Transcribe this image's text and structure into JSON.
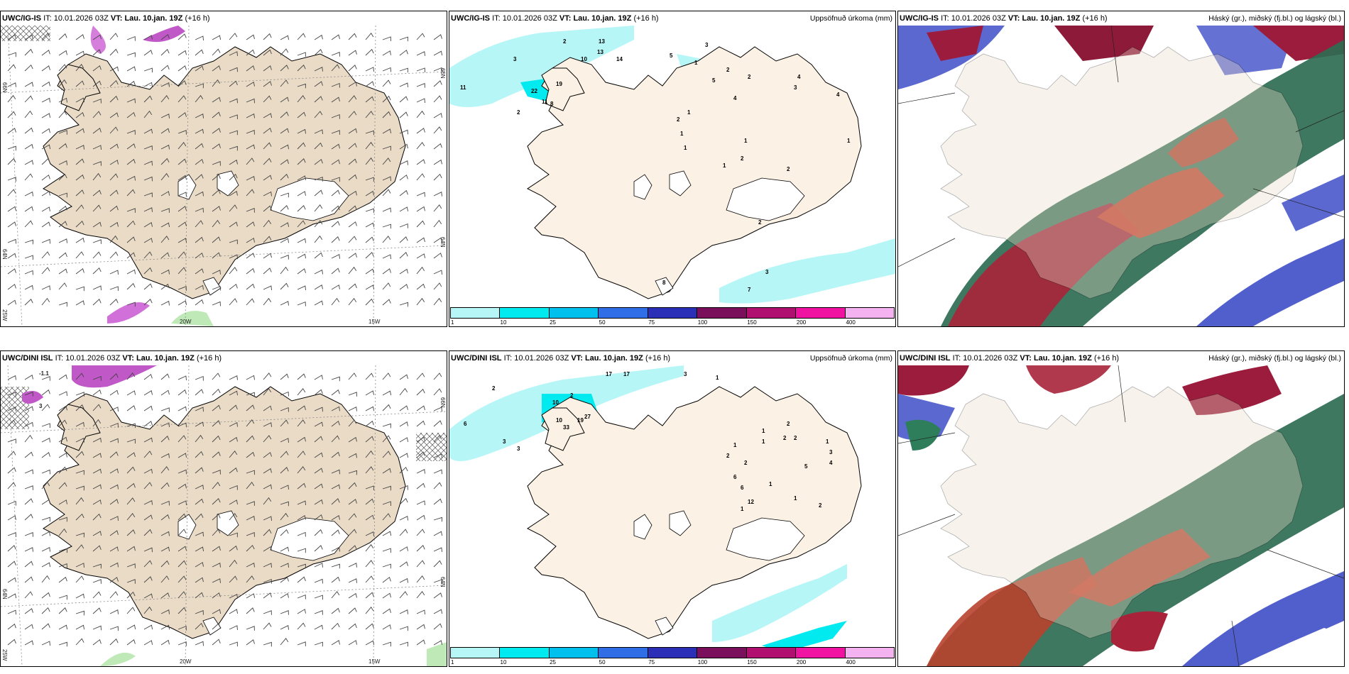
{
  "panels": {
    "p1": {
      "model": "UWC/IG-IS",
      "it_label": "IT:",
      "it": "10.01.2026 03Z",
      "vt_label": "VT:",
      "vt": "Lau. 10.jan. 19Z",
      "lead": "(+16 h)",
      "title": ""
    },
    "p2": {
      "model": "UWC/IG-IS",
      "it_label": "IT:",
      "it": "10.01.2026 03Z",
      "vt_label": "VT:",
      "vt": "Lau. 10.jan. 19Z",
      "lead": "(+16 h)",
      "title": "Uppsöfnuð úrkoma (mm)"
    },
    "p3": {
      "model": "UWC/IG-IS",
      "it_label": "IT:",
      "it": "10.01.2026 03Z",
      "vt_label": "VT:",
      "vt": "Lau. 10.jan. 19Z",
      "lead": "(+16 h)",
      "title": "Háský (gr.), miðský (fj.bl.) og lágský (bl.)"
    },
    "p4": {
      "model": "UWC/DINI ISL",
      "it_label": "IT:",
      "it": "10.01.2026 03Z",
      "vt_label": "VT:",
      "vt": "Lau. 10.jan. 19Z",
      "lead": "(+16 h)",
      "title": ""
    },
    "p5": {
      "model": "UWC/DINI ISL",
      "it_label": "IT:",
      "it": "10.01.2026 03Z",
      "vt_label": "VT:",
      "vt": "Lau. 10.jan. 19Z",
      "lead": "(+16 h)",
      "title": "Uppsöfnuð úrkoma (mm)"
    },
    "p6": {
      "model": "UWC/DINI ISL",
      "it_label": "IT:",
      "it": "10.01.2026 03Z",
      "vt_label": "VT:",
      "vt": "Lau. 10.jan. 19Z",
      "lead": "(+16 h)",
      "title": "Háský (gr.), miðský (fj.bl.) og lágský (bl.)"
    }
  },
  "wind_axis": {
    "lat_66": "66N",
    "lat_64": "64N",
    "lon_25": "25W",
    "lon_20": "20W",
    "lon_15": "15W",
    "top_val_ig": "",
    "top_val_dini": "-1.1",
    "west_val_dini": "3"
  },
  "precip_legend": {
    "labels": [
      "1",
      "10",
      "25",
      "50",
      "75",
      "100",
      "150",
      "200",
      "400"
    ],
    "colors": [
      "#b6f6f7",
      "#00eaf0",
      "#00c0ee",
      "#2f6ee6",
      "#2b2fb8",
      "#7a0f5c",
      "#b0106f",
      "#f012a0",
      "#f5b2f0"
    ]
  },
  "precip_ig": [
    "2",
    "13",
    "13",
    "10",
    "14",
    "11",
    "3",
    "5",
    "1",
    "5",
    "2",
    "3",
    "2",
    "4",
    "3",
    "4",
    "4",
    "22",
    "19",
    "11",
    "8",
    "2",
    "1",
    "2",
    "1",
    "1",
    "1",
    "2",
    "1",
    "2",
    "1",
    "2",
    "3",
    "7",
    "8"
  ],
  "precip_dini": [
    "17",
    "17",
    "3",
    "2",
    "6",
    "2",
    "10",
    "10",
    "27",
    "19",
    "33",
    "3",
    "3",
    "1",
    "1",
    "1",
    "2",
    "2",
    "2",
    "1",
    "3",
    "4",
    "5",
    "1",
    "1",
    "2",
    "1",
    "2",
    "2",
    "6",
    "6",
    "12",
    "1"
  ],
  "cloud_colors": {
    "high": "#2e7d5b",
    "mid": "#c0392b",
    "low": "#3345c8"
  }
}
